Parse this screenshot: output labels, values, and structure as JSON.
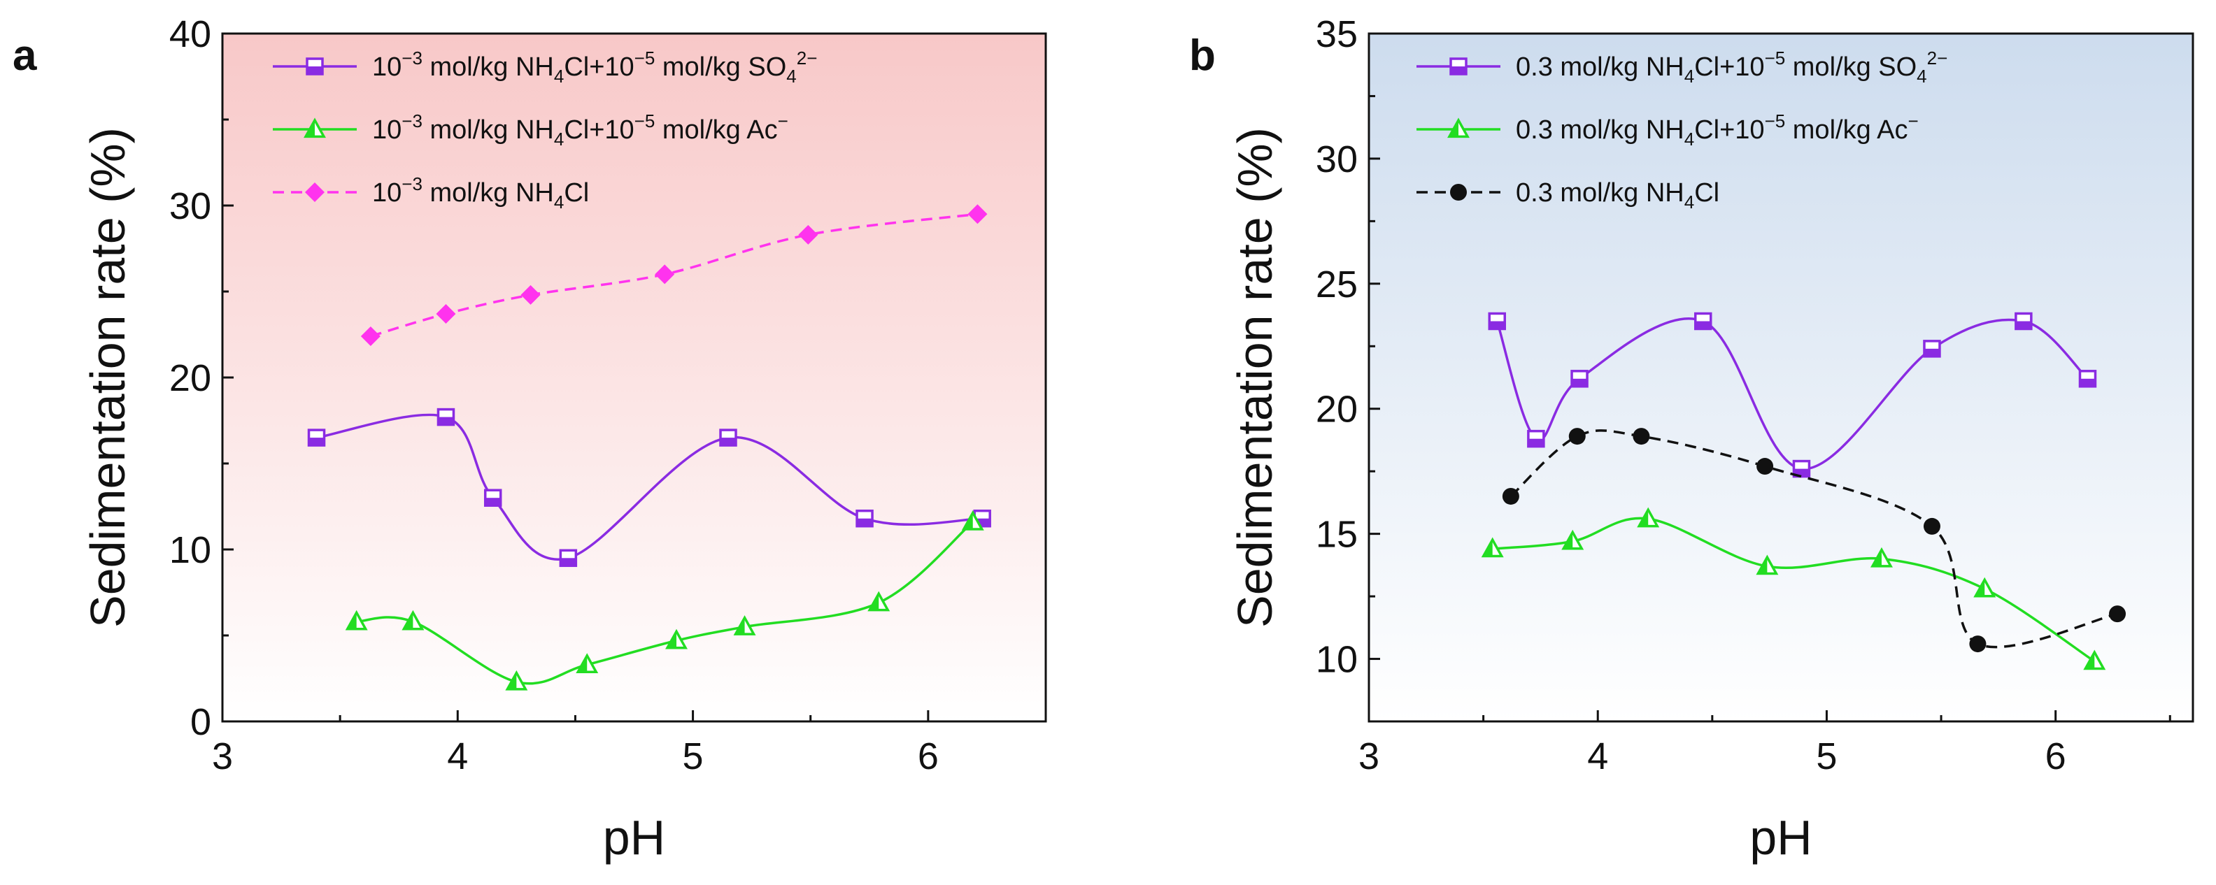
{
  "chart_data": [
    {
      "type": "line",
      "panel_label": "a",
      "title": "",
      "xlabel": "pH",
      "ylabel": "Sedimentation rate (%)",
      "xlim": [
        3,
        6.5
      ],
      "ylim": [
        0,
        40
      ],
      "xticks": [
        "3",
        "4",
        "5",
        "6"
      ],
      "yticks": [
        "0",
        "10",
        "20",
        "30",
        "40"
      ],
      "background": {
        "top": "#f8c8c8",
        "bottom": "#ffffff"
      },
      "legend_position": "top-left",
      "series": [
        {
          "name": "10^-3 mol/kg NH4Cl+10^-5 mol/kg SO4^2-",
          "legend_parts": [
            "10",
            "−3",
            " mol/kg NH",
            "4",
            "Cl+10",
            "−5",
            " mol/kg SO",
            "4",
            "2−"
          ],
          "color": "#8a2be2",
          "marker": "half-square",
          "line": "solid",
          "x": [
            3.4,
            3.95,
            4.15,
            4.47,
            5.15,
            5.73,
            6.23
          ],
          "y": [
            16.5,
            17.7,
            13.0,
            9.5,
            16.5,
            11.8,
            11.8
          ]
        },
        {
          "name": "10^-3 mol/kg NH4Cl+10^-5 mol/kg Ac-",
          "legend_parts": [
            "10",
            "−3",
            " mol/kg NH",
            "4",
            "Cl+10",
            "−5",
            " mol/kg Ac",
            "−"
          ],
          "color": "#22dd22",
          "marker": "half-triangle",
          "line": "solid",
          "x": [
            3.57,
            3.81,
            4.25,
            4.55,
            4.93,
            5.22,
            5.79,
            6.19
          ],
          "y": [
            5.8,
            5.8,
            2.3,
            3.3,
            4.7,
            5.5,
            6.9,
            11.6
          ]
        },
        {
          "name": "10^-3 mol/kg NH4Cl",
          "legend_parts": [
            "10",
            "−3",
            " mol/kg NH",
            "4",
            "Cl"
          ],
          "color": "#ff33ee",
          "marker": "diamond",
          "line": "dashed",
          "x": [
            3.63,
            3.95,
            4.31,
            4.88,
            5.49,
            6.21
          ],
          "y": [
            22.4,
            23.7,
            24.8,
            26.0,
            28.3,
            29.5
          ]
        }
      ]
    },
    {
      "type": "line",
      "panel_label": "b",
      "title": "",
      "xlabel": "pH",
      "ylabel": "Sedimentation rate (%)",
      "xlim": [
        3,
        6.6
      ],
      "ylim": [
        7.5,
        35
      ],
      "xticks": [
        "3",
        "4",
        "5",
        "6"
      ],
      "yticks": [
        "10",
        "15",
        "20",
        "25",
        "30",
        "35"
      ],
      "background": {
        "top": "#cddcee",
        "bottom": "#ffffff"
      },
      "legend_position": "top-left",
      "series": [
        {
          "name": "0.3 mol/kg NH4Cl+10^-5 mol/kg SO4^2-",
          "legend_parts": [
            "0.3 mol/kg NH",
            "4",
            "Cl+10",
            "−5",
            " mol/kg SO",
            "4",
            "2−"
          ],
          "color": "#8a2be2",
          "marker": "half-square",
          "line": "solid",
          "x": [
            3.56,
            3.73,
            3.92,
            4.46,
            4.89,
            5.46,
            5.86,
            6.14
          ],
          "y": [
            23.5,
            18.8,
            21.2,
            23.5,
            17.6,
            22.4,
            23.5,
            21.2
          ]
        },
        {
          "name": "0.3 mol/kg NH4Cl+10^-5 mol/kg Ac-",
          "legend_parts": [
            "0.3 mol/kg NH",
            "4",
            "Cl+10",
            "−5",
            " mol/kg Ac",
            "−"
          ],
          "color": "#22dd22",
          "marker": "half-triangle",
          "line": "solid",
          "x": [
            3.54,
            3.89,
            4.22,
            4.74,
            5.24,
            5.69,
            6.17
          ],
          "y": [
            14.4,
            14.7,
            15.6,
            13.7,
            14.0,
            12.8,
            9.9
          ]
        },
        {
          "name": "0.3 mol/kg NH4Cl",
          "legend_parts": [
            "0.3 mol/kg NH",
            "4",
            "Cl"
          ],
          "color": "#111111",
          "marker": "circle",
          "line": "dashed",
          "x": [
            3.62,
            3.91,
            4.19,
            4.73,
            5.46,
            5.66,
            6.27
          ],
          "y": [
            16.5,
            18.9,
            18.9,
            17.7,
            15.3,
            10.6,
            11.8
          ]
        }
      ]
    }
  ]
}
